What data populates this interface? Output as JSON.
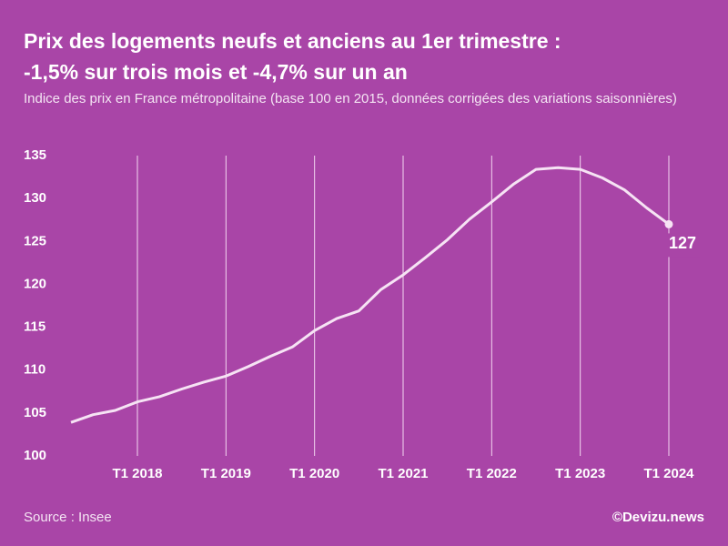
{
  "chart_data": {
    "type": "line",
    "title": [
      "Prix des logements neufs et anciens au 1er trimestre :",
      "-1,5% sur trois mois et -4,7% sur un an"
    ],
    "subtitle": "Indice des prix en France métropolitaine (base 100 en 2015, données corrigées des variations saisonnières)",
    "categories": [
      null,
      null,
      null,
      "T1 2018",
      null,
      null,
      null,
      "T1 2019",
      null,
      null,
      null,
      "T1 2020",
      null,
      null,
      null,
      "T1 2021",
      null,
      null,
      null,
      "T1 2022",
      null,
      null,
      null,
      "T1 2023",
      null,
      null,
      null,
      "T1 2024"
    ],
    "values": [
      103.9,
      104.8,
      105.3,
      106.3,
      106.9,
      107.8,
      108.6,
      109.3,
      110.4,
      111.6,
      112.7,
      114.6,
      116.0,
      116.9,
      119.4,
      121.1,
      123.1,
      125.2,
      127.6,
      129.6,
      131.7,
      133.4,
      133.6,
      133.4,
      132.4,
      131.0,
      128.9,
      127
    ],
    "color": "#f6e3f4",
    "ylim": [
      100,
      135
    ],
    "yticks": [
      100,
      105,
      110,
      115,
      120,
      125,
      130,
      135
    ]
  },
  "source": "Source : Insee",
  "credit": "©Devizu.news"
}
